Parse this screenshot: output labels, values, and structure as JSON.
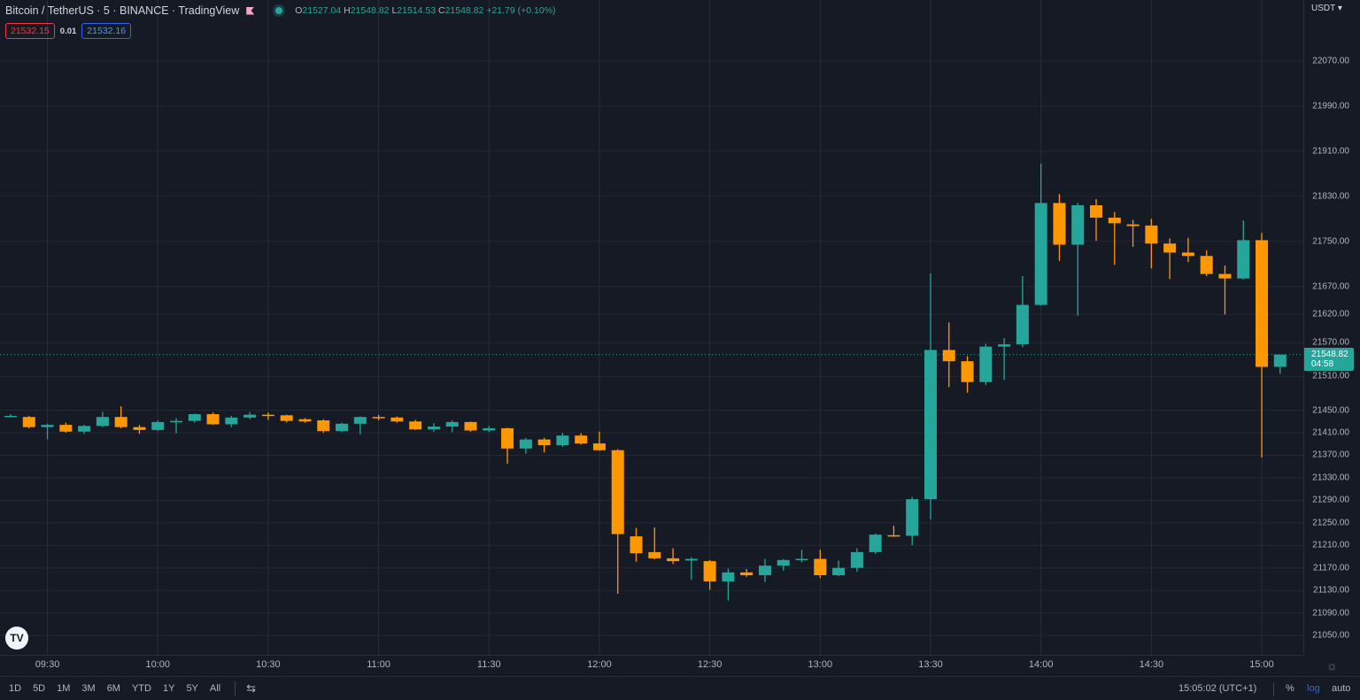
{
  "header": {
    "title": "Bitcoin / TetherUS · 5 · BINANCE · TradingView",
    "ohlc": {
      "o_label": "O",
      "o": "21527.04",
      "h_label": "H",
      "h": "21548.82",
      "l_label": "L",
      "l": "21514.53",
      "c_label": "C",
      "c": "21548.82",
      "change": "+21.79 (+0.10%)"
    },
    "bid": "21532.15",
    "spread": "0.01",
    "ask": "21532.16",
    "up_color": "#26a69a",
    "down_color": "#ff9800"
  },
  "price_axis": {
    "currency": "USDT ▾",
    "last_price": "21548.82",
    "countdown": "04:58"
  },
  "time_axis_labels": [
    "09:30",
    "10:00",
    "10:30",
    "11:00",
    "11:30",
    "12:00",
    "12:30",
    "13:00",
    "13:30",
    "14:00",
    "14:30",
    "15:00"
  ],
  "bottom_bar": {
    "ranges": [
      "1D",
      "5D",
      "1M",
      "3M",
      "6M",
      "YTD",
      "1Y",
      "5Y",
      "All"
    ],
    "clock": "15:05:02 (UTC+1)",
    "percent": "%",
    "log": "log",
    "auto": "auto"
  },
  "chart_data": {
    "type": "candlestick",
    "interval": "5m",
    "y_scale": "log",
    "grid": true,
    "y_ticks": [
      22070,
      21990,
      21910,
      21830,
      21750,
      21670,
      21620,
      21570,
      21510,
      21450,
      21410,
      21370,
      21330,
      21290,
      21250,
      21210,
      21170,
      21130,
      21090,
      21050
    ],
    "y_range": [
      21020,
      22150
    ],
    "x_ticks": [
      "09:30",
      "10:00",
      "10:30",
      "11:00",
      "11:30",
      "12:00",
      "12:30",
      "13:00",
      "13:30",
      "14:00",
      "14:30",
      "15:00"
    ],
    "current_price": 21548.82,
    "candles": [
      {
        "t": "09:20",
        "o": 21440,
        "h": 21443,
        "l": 21437,
        "c": 21440
      },
      {
        "t": "09:25",
        "o": 21438,
        "h": 21440,
        "l": 21418,
        "c": 21420
      },
      {
        "t": "09:30",
        "o": 21420,
        "h": 21426,
        "l": 21398,
        "c": 21424
      },
      {
        "t": "09:35",
        "o": 21424,
        "h": 21428,
        "l": 21410,
        "c": 21412
      },
      {
        "t": "09:40",
        "o": 21412,
        "h": 21424,
        "l": 21408,
        "c": 21422
      },
      {
        "t": "09:45",
        "o": 21422,
        "h": 21447,
        "l": 21420,
        "c": 21438
      },
      {
        "t": "09:50",
        "o": 21438,
        "h": 21457,
        "l": 21418,
        "c": 21420
      },
      {
        "t": "09:55",
        "o": 21420,
        "h": 21424,
        "l": 21408,
        "c": 21415
      },
      {
        "t": "10:00",
        "o": 21415,
        "h": 21432,
        "l": 21413,
        "c": 21429
      },
      {
        "t": "10:05",
        "o": 21429,
        "h": 21436,
        "l": 21409,
        "c": 21431
      },
      {
        "t": "10:10",
        "o": 21431,
        "h": 21444,
        "l": 21428,
        "c": 21443
      },
      {
        "t": "10:15",
        "o": 21443,
        "h": 21446,
        "l": 21424,
        "c": 21425
      },
      {
        "t": "10:20",
        "o": 21425,
        "h": 21440,
        "l": 21420,
        "c": 21437
      },
      {
        "t": "10:25",
        "o": 21437,
        "h": 21447,
        "l": 21434,
        "c": 21442
      },
      {
        "t": "10:30",
        "o": 21442,
        "h": 21446,
        "l": 21433,
        "c": 21441
      },
      {
        "t": "10:35",
        "o": 21441,
        "h": 21442,
        "l": 21428,
        "c": 21431
      },
      {
        "t": "10:40",
        "o": 21434,
        "h": 21436,
        "l": 21428,
        "c": 21430
      },
      {
        "t": "10:45",
        "o": 21432,
        "h": 21434,
        "l": 21410,
        "c": 21413
      },
      {
        "t": "10:50",
        "o": 21413,
        "h": 21428,
        "l": 21411,
        "c": 21426
      },
      {
        "t": "10:55",
        "o": 21426,
        "h": 21439,
        "l": 21407,
        "c": 21438
      },
      {
        "t": "11:00",
        "o": 21438,
        "h": 21442,
        "l": 21432,
        "c": 21437
      },
      {
        "t": "11:05",
        "o": 21437,
        "h": 21439,
        "l": 21428,
        "c": 21430
      },
      {
        "t": "11:10",
        "o": 21430,
        "h": 21433,
        "l": 21415,
        "c": 21416
      },
      {
        "t": "11:15",
        "o": 21416,
        "h": 21427,
        "l": 21412,
        "c": 21421
      },
      {
        "t": "11:20",
        "o": 21421,
        "h": 21432,
        "l": 21411,
        "c": 21429
      },
      {
        "t": "11:25",
        "o": 21429,
        "h": 21430,
        "l": 21412,
        "c": 21414
      },
      {
        "t": "11:30",
        "o": 21414,
        "h": 21422,
        "l": 21411,
        "c": 21418
      },
      {
        "t": "11:35",
        "o": 21418,
        "h": 21419,
        "l": 21355,
        "c": 21382
      },
      {
        "t": "11:40",
        "o": 21382,
        "h": 21401,
        "l": 21373,
        "c": 21398
      },
      {
        "t": "11:45",
        "o": 21398,
        "h": 21401,
        "l": 21375,
        "c": 21388
      },
      {
        "t": "11:50",
        "o": 21388,
        "h": 21410,
        "l": 21385,
        "c": 21405
      },
      {
        "t": "11:55",
        "o": 21405,
        "h": 21409,
        "l": 21389,
        "c": 21391
      },
      {
        "t": "12:00",
        "o": 21391,
        "h": 21412,
        "l": 21378,
        "c": 21379
      },
      {
        "t": "12:05",
        "o": 21379,
        "h": 21381,
        "l": 21124,
        "c": 21230
      },
      {
        "t": "12:10",
        "o": 21226,
        "h": 21241,
        "l": 21181,
        "c": 21196
      },
      {
        "t": "12:15",
        "o": 21198,
        "h": 21242,
        "l": 21185,
        "c": 21187
      },
      {
        "t": "12:20",
        "o": 21187,
        "h": 21205,
        "l": 21177,
        "c": 21182
      },
      {
        "t": "12:25",
        "o": 21183,
        "h": 21189,
        "l": 21149,
        "c": 21186
      },
      {
        "t": "12:30",
        "o": 21182,
        "h": 21184,
        "l": 21131,
        "c": 21146
      },
      {
        "t": "12:35",
        "o": 21146,
        "h": 21169,
        "l": 21112,
        "c": 21162
      },
      {
        "t": "12:40",
        "o": 21162,
        "h": 21168,
        "l": 21154,
        "c": 21157
      },
      {
        "t": "12:45",
        "o": 21157,
        "h": 21186,
        "l": 21145,
        "c": 21174
      },
      {
        "t": "12:50",
        "o": 21174,
        "h": 21186,
        "l": 21165,
        "c": 21184
      },
      {
        "t": "12:55",
        "o": 21184,
        "h": 21202,
        "l": 21180,
        "c": 21186
      },
      {
        "t": "13:00",
        "o": 21186,
        "h": 21202,
        "l": 21152,
        "c": 21157
      },
      {
        "t": "13:05",
        "o": 21157,
        "h": 21183,
        "l": 21155,
        "c": 21170
      },
      {
        "t": "13:10",
        "o": 21170,
        "h": 21205,
        "l": 21163,
        "c": 21198
      },
      {
        "t": "13:15",
        "o": 21198,
        "h": 21231,
        "l": 21195,
        "c": 21229
      },
      {
        "t": "13:20",
        "o": 21228,
        "h": 21245,
        "l": 21225,
        "c": 21227
      },
      {
        "t": "13:25",
        "o": 21227,
        "h": 21296,
        "l": 21210,
        "c": 21292
      },
      {
        "t": "13:30",
        "o": 21292,
        "h": 21693,
        "l": 21256,
        "c": 21557
      },
      {
        "t": "13:35",
        "o": 21557,
        "h": 21606,
        "l": 21491,
        "c": 21537
      },
      {
        "t": "13:40",
        "o": 21537,
        "h": 21546,
        "l": 21481,
        "c": 21500
      },
      {
        "t": "13:45",
        "o": 21500,
        "h": 21568,
        "l": 21495,
        "c": 21563
      },
      {
        "t": "13:50",
        "o": 21563,
        "h": 21578,
        "l": 21504,
        "c": 21567
      },
      {
        "t": "13:55",
        "o": 21567,
        "h": 21688,
        "l": 21562,
        "c": 21637
      },
      {
        "t": "14:00",
        "o": 21637,
        "h": 21888,
        "l": 21636,
        "c": 21818
      },
      {
        "t": "14:05",
        "o": 21818,
        "h": 21834,
        "l": 21715,
        "c": 21744
      },
      {
        "t": "14:10",
        "o": 21744,
        "h": 21818,
        "l": 21618,
        "c": 21814
      },
      {
        "t": "14:15",
        "o": 21814,
        "h": 21825,
        "l": 21751,
        "c": 21792
      },
      {
        "t": "14:20",
        "o": 21792,
        "h": 21802,
        "l": 21708,
        "c": 21782
      },
      {
        "t": "14:25",
        "o": 21780,
        "h": 21788,
        "l": 21740,
        "c": 21777
      },
      {
        "t": "14:30",
        "o": 21778,
        "h": 21790,
        "l": 21702,
        "c": 21746
      },
      {
        "t": "14:35",
        "o": 21746,
        "h": 21755,
        "l": 21683,
        "c": 21730
      },
      {
        "t": "14:40",
        "o": 21730,
        "h": 21756,
        "l": 21713,
        "c": 21724
      },
      {
        "t": "14:45",
        "o": 21724,
        "h": 21734,
        "l": 21688,
        "c": 21692
      },
      {
        "t": "14:50",
        "o": 21692,
        "h": 21707,
        "l": 21620,
        "c": 21684
      },
      {
        "t": "14:55",
        "o": 21684,
        "h": 21787,
        "l": 21682,
        "c": 21752
      },
      {
        "t": "15:00",
        "o": 21752,
        "h": 21765,
        "l": 21366,
        "c": 21527
      },
      {
        "t": "15:05",
        "o": 21527.04,
        "h": 21548.82,
        "l": 21514.53,
        "c": 21548.82
      }
    ]
  }
}
